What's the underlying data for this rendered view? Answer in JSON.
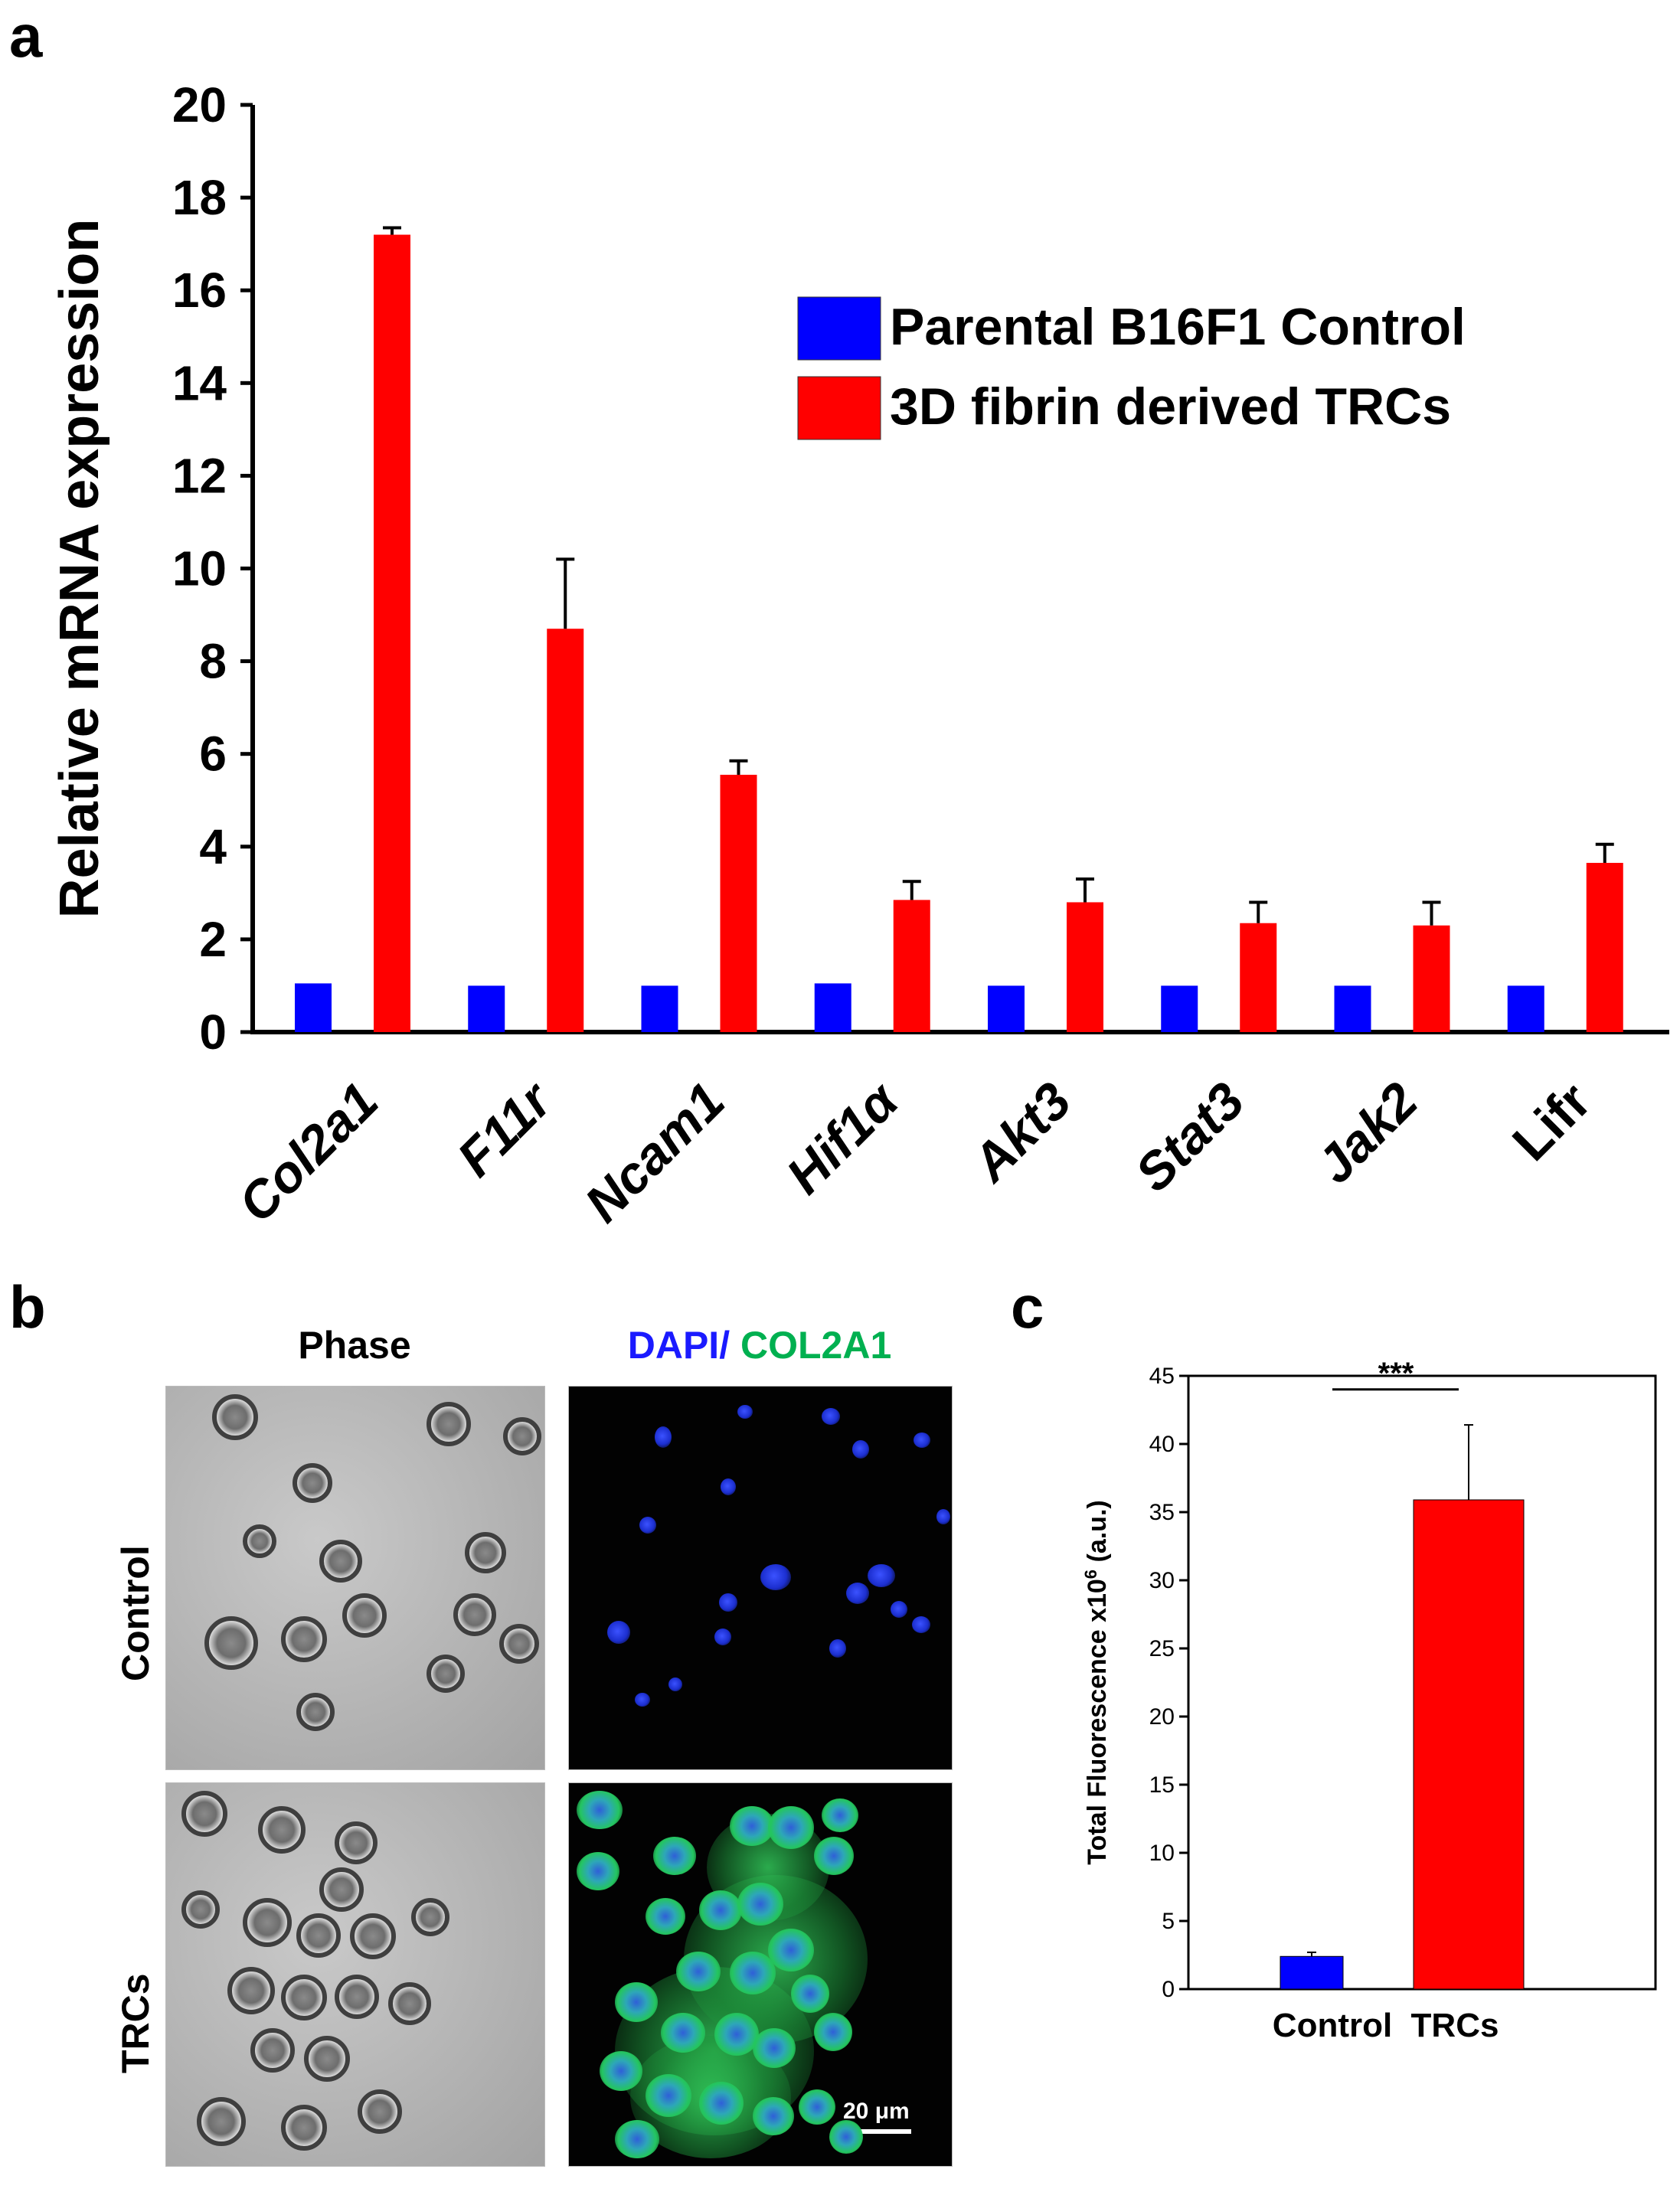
{
  "panels": {
    "a": "a",
    "b": "b",
    "c": "c"
  },
  "chart_data": [
    {
      "type": "bar",
      "panel": "a",
      "ylabel": "Relative mRNA expression",
      "ylim": [
        0,
        20
      ],
      "yticks": [
        0,
        2,
        4,
        6,
        8,
        10,
        12,
        14,
        16,
        18,
        20
      ],
      "categories": [
        "Col2a1",
        "F11r",
        "Ncam1",
        "Hif1α",
        "Akt3",
        "Stat3",
        "Jak2",
        "Lifr"
      ],
      "series": [
        {
          "name": "Parental B16F1 Control",
          "color": "#0000ff",
          "values": [
            1.05,
            1.0,
            1.0,
            1.05,
            1.0,
            1.0,
            1.0,
            1.0
          ],
          "errors": [
            0,
            0,
            0,
            0,
            0,
            0,
            0,
            0
          ]
        },
        {
          "name": "3D fibrin derived TRCs",
          "color": "#ff0000",
          "values": [
            17.2,
            8.7,
            5.55,
            2.85,
            2.8,
            2.35,
            2.3,
            3.65
          ],
          "errors": [
            0.15,
            1.5,
            0.3,
            0.4,
            0.5,
            0.45,
            0.5,
            0.4
          ]
        }
      ],
      "legend_position": "top-right"
    },
    {
      "type": "bar",
      "panel": "c",
      "ylabel": "Total Fluorescence x10",
      "ylabel_superscript": "6",
      "ylabel_suffix": " (a.u.)",
      "ylim": [
        0,
        45
      ],
      "yticks": [
        0,
        5,
        10,
        15,
        20,
        25,
        30,
        35,
        40,
        45
      ],
      "categories": [
        "Control",
        "TRCs"
      ],
      "values": [
        2.4,
        35.9
      ],
      "errors": [
        0.3,
        5.5
      ],
      "colors": [
        "#0000ff",
        "#ff0000"
      ],
      "significance": "***"
    }
  ],
  "micrographs": {
    "col_labels": {
      "phase": "Phase",
      "dapi": "DAPI/",
      "col2a1": " COL2A1"
    },
    "row_labels": {
      "control": "Control",
      "trcs": "TRCs"
    },
    "scale_bar": "20 μm",
    "colors": {
      "dapi": "#1a1aff",
      "col2a1": "#00b050"
    }
  }
}
